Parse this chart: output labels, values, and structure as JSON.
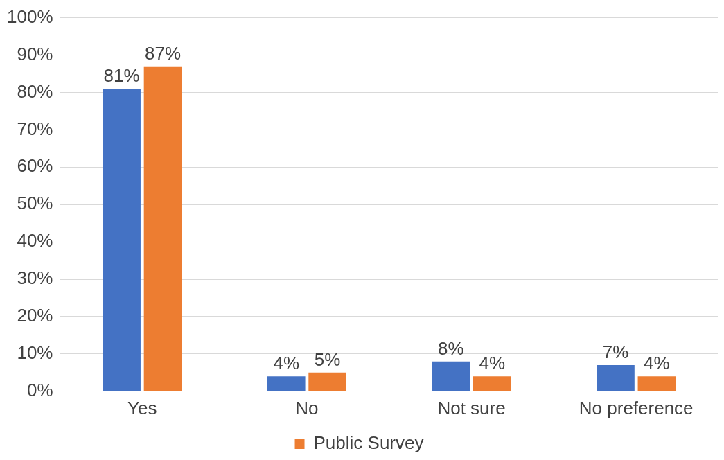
{
  "chart_data": {
    "type": "bar",
    "categories": [
      "Yes",
      "No",
      "Not sure",
      "No preference"
    ],
    "series": [
      {
        "color": "#4472c4",
        "values": [
          81,
          4,
          8,
          7
        ],
        "value_labels": [
          "81%",
          "4%",
          "8%",
          "7%"
        ]
      },
      {
        "name": "Public Survey",
        "color": "#ed7d31",
        "values": [
          87,
          5,
          4,
          4
        ],
        "value_labels": [
          "87%",
          "5%",
          "4%",
          "4%"
        ]
      }
    ],
    "ylim": [
      0,
      100
    ],
    "yticks": [
      {
        "value": 0,
        "label": "0%"
      },
      {
        "value": 10,
        "label": "10%"
      },
      {
        "value": 20,
        "label": "20%"
      },
      {
        "value": 30,
        "label": "30%"
      },
      {
        "value": 40,
        "label": "40%"
      },
      {
        "value": 50,
        "label": "50%"
      },
      {
        "value": 60,
        "label": "60%"
      },
      {
        "value": 70,
        "label": "70%"
      },
      {
        "value": 80,
        "label": "80%"
      },
      {
        "value": 90,
        "label": "90%"
      },
      {
        "value": 100,
        "label": "100%"
      }
    ],
    "grid": "y",
    "legend": "bottom"
  }
}
